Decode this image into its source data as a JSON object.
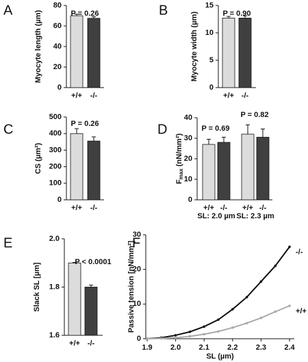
{
  "chart_data": [
    {
      "type": "bar",
      "panel": "A",
      "ylabel": "Myocyte length (µm)",
      "annotations": [
        "P = 0.26"
      ],
      "categories": [
        "+/+",
        "-/-"
      ],
      "values": [
        70,
        67.5
      ],
      "errors": [
        1.5,
        1.5
      ],
      "colors": [
        "#dcdcdc",
        "#404040"
      ],
      "ylim": [
        0,
        80
      ],
      "yticks": [
        0,
        20,
        40,
        60,
        80
      ]
    },
    {
      "type": "bar",
      "panel": "B",
      "ylabel": "Myocyte width (µm)",
      "annotations": [
        "P = 0.90"
      ],
      "categories": [
        "+/+",
        "-/-"
      ],
      "values": [
        12.7,
        12.7
      ],
      "errors": [
        0.3,
        0.4
      ],
      "colors": [
        "#dcdcdc",
        "#404040"
      ],
      "ylim": [
        0,
        15
      ],
      "yticks": [
        0,
        5,
        10,
        15
      ]
    },
    {
      "type": "bar",
      "panel": "C",
      "ylabel": "CS (µm²)",
      "annotations": [
        "P = 0.26"
      ],
      "categories": [
        "+/+",
        "-/-"
      ],
      "values": [
        400,
        355
      ],
      "errors": [
        30,
        25
      ],
      "colors": [
        "#dcdcdc",
        "#404040"
      ],
      "ylim": [
        0,
        500
      ],
      "yticks": [
        0,
        100,
        200,
        300,
        400,
        500
      ]
    },
    {
      "type": "grouped-bar",
      "panel": "D",
      "ylabel": "F",
      "ylabel_sub": "max",
      "ylabel_unit": " (nN/mm²)",
      "colors": [
        "#dcdcdc",
        "#404040"
      ],
      "groups": [
        {
          "label": "SL: 2.0 µm",
          "annotation": "P = 0.69",
          "categories": [
            "+/+",
            "-/-"
          ],
          "values": [
            27,
            28
          ],
          "errors": [
            2.5,
            2.5
          ]
        },
        {
          "label": "SL: 2.3 µm",
          "annotation": "P = 0.82",
          "categories": [
            "+/+",
            "-/-"
          ],
          "values": [
            32,
            30.5
          ],
          "errors": [
            4.5,
            4
          ]
        }
      ],
      "ylim": [
        0,
        40
      ],
      "yticks": [
        0,
        10,
        20,
        30,
        40
      ]
    },
    {
      "type": "bar",
      "panel": "E",
      "ylabel": "Slack SL [µm]",
      "annotations": [
        "P < 0.0001"
      ],
      "categories": [
        "+/+",
        "-/-"
      ],
      "values": [
        1.9,
        1.8
      ],
      "errors": [
        0.002,
        0.008
      ],
      "colors": [
        "#dcdcdc",
        "#404040"
      ],
      "ylim": [
        1.6,
        2.0
      ],
      "yticks": [
        1.6,
        1.8,
        {
          "value": 2.0,
          "label": "2.0"
        }
      ]
    },
    {
      "type": "line",
      "panel": "F",
      "ylabel": "Passive tension [nN/mm²]",
      "xlabel": "SL (µm)",
      "x": [
        1.9,
        1.95,
        2.0,
        2.05,
        2.1,
        2.15,
        2.2,
        2.25,
        2.3,
        2.35,
        2.4
      ],
      "series": [
        {
          "name": "-/-",
          "color": "#111111",
          "values": [
            0,
            0.3,
            1,
            2,
            3.5,
            5.5,
            8.5,
            12,
            16.5,
            21,
            26.5
          ]
        },
        {
          "name": "+/+",
          "color": "#aaaaaa",
          "values": [
            0,
            0.1,
            0.3,
            0.7,
            1.3,
            2.1,
            3.2,
            4.5,
            6,
            7.8,
            9.5
          ]
        }
      ],
      "xlim": [
        1.9,
        2.4
      ],
      "xticks": [
        1.9,
        {
          "value": 2.0,
          "label": "2.0"
        },
        2.1,
        2.2,
        2.3,
        2.4
      ],
      "ylim": [
        0,
        30
      ],
      "yticks": [
        0,
        10,
        20,
        30
      ]
    }
  ]
}
